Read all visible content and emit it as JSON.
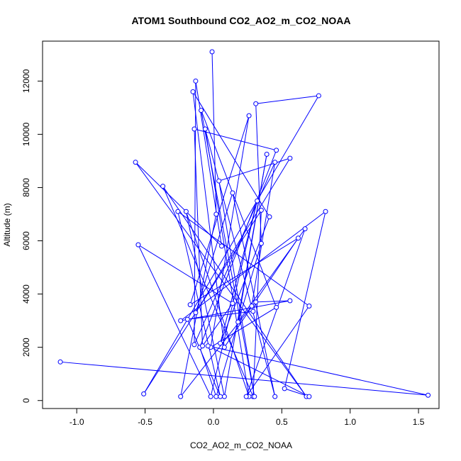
{
  "chart_data": {
    "type": "scatter",
    "title": "ATOM1 Southbound CO2_AO2_m_CO2_NOAA",
    "xlabel": "CO2_AO2_m_CO2_NOAA",
    "ylabel": "Altitude (m)",
    "xlim": [
      -1.25,
      1.65
    ],
    "ylim": [
      -300,
      13500
    ],
    "x_ticks": [
      -1.0,
      -0.5,
      0.0,
      0.5,
      1.0,
      1.5
    ],
    "x_tick_labels": [
      "-1.0",
      "-0.5",
      "0.0",
      "0.5",
      "1.0",
      "1.5"
    ],
    "y_ticks": [
      0,
      2000,
      4000,
      6000,
      8000,
      10000,
      12000
    ],
    "y_tick_labels": [
      "0",
      "2000",
      "4000",
      "6000",
      "8000",
      "10000",
      "12000"
    ],
    "grid": false,
    "line_and_points": true,
    "colors": {
      "series": "#0000ff",
      "axis": "#000000"
    },
    "series": [
      {
        "points": [
          {
            "x": -0.01,
            "y": 13100
          },
          {
            "x": 0.02,
            "y": 7000
          },
          {
            "x": -0.24,
            "y": 150
          },
          {
            "x": 0.28,
            "y": 3550
          },
          {
            "x": 0.45,
            "y": 8950
          },
          {
            "x": -0.14,
            "y": 2100
          },
          {
            "x": -0.13,
            "y": 12000
          },
          {
            "x": 0.06,
            "y": 5800
          },
          {
            "x": -0.57,
            "y": 8950
          },
          {
            "x": 0.68,
            "y": 150
          },
          {
            "x": -0.37,
            "y": 8050
          },
          {
            "x": 0.29,
            "y": 150
          },
          {
            "x": 0.35,
            "y": 7150
          },
          {
            "x": -0.51,
            "y": 250
          },
          {
            "x": 0.77,
            "y": 11450
          },
          {
            "x": 0.31,
            "y": 11150
          },
          {
            "x": 0.35,
            "y": 5900
          },
          {
            "x": 0.02,
            "y": 150
          },
          {
            "x": -0.1,
            "y": 2000
          },
          {
            "x": 0.46,
            "y": 9400
          },
          {
            "x": -0.14,
            "y": 10200
          },
          {
            "x": -0.08,
            "y": 2050
          },
          {
            "x": 0.14,
            "y": 3650
          },
          {
            "x": -0.55,
            "y": 5850
          },
          {
            "x": -0.02,
            "y": 150
          },
          {
            "x": 0.32,
            "y": 7500
          },
          {
            "x": 0.05,
            "y": 2150
          },
          {
            "x": 0.41,
            "y": 6900
          },
          {
            "x": -0.15,
            "y": 11600
          },
          {
            "x": 0.08,
            "y": 2000
          },
          {
            "x": 0.62,
            "y": 6100
          },
          {
            "x": -0.17,
            "y": 3600
          },
          {
            "x": 0.26,
            "y": 10700
          },
          {
            "x": -0.02,
            "y": 2000
          },
          {
            "x": 0.46,
            "y": 3500
          },
          {
            "x": -0.09,
            "y": 10900
          },
          {
            "x": 0.3,
            "y": 150
          },
          {
            "x": 0.04,
            "y": 8250
          },
          {
            "x": 0.56,
            "y": 9100
          },
          {
            "x": -0.13,
            "y": 3300
          },
          {
            "x": 0.14,
            "y": 7800
          },
          {
            "x": 0.45,
            "y": 150
          },
          {
            "x": -0.06,
            "y": 10200
          },
          {
            "x": 0.26,
            "y": 150
          },
          {
            "x": -0.2,
            "y": 7100
          },
          {
            "x": 0.08,
            "y": 150
          },
          {
            "x": 0.39,
            "y": 9250
          },
          {
            "x": 0.18,
            "y": 2950
          },
          {
            "x": 0.67,
            "y": 6450
          },
          {
            "x": 0.24,
            "y": 150
          },
          {
            "x": 0.7,
            "y": 3550
          },
          {
            "x": -0.26,
            "y": 7100
          },
          {
            "x": 0.05,
            "y": 150
          },
          {
            "x": -0.19,
            "y": 3050
          },
          {
            "x": 0.29,
            "y": 3350
          },
          {
            "x": 0.31,
            "y": 3700
          },
          {
            "x": 0.56,
            "y": 3750
          },
          {
            "x": -0.24,
            "y": 3000
          },
          {
            "x": 0.82,
            "y": 7100
          },
          {
            "x": 0.52,
            "y": 450
          },
          {
            "x": 0.7,
            "y": 150
          },
          {
            "x": -0.04,
            "y": 2050
          },
          {
            "x": 1.57,
            "y": 200
          },
          {
            "x": -1.12,
            "y": 1450
          }
        ]
      }
    ]
  }
}
